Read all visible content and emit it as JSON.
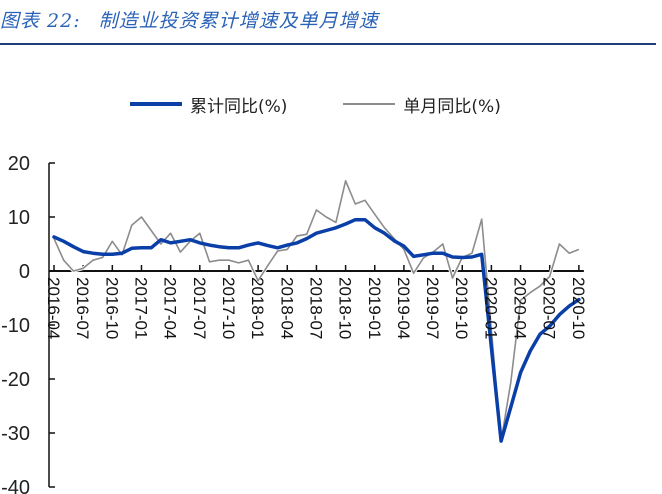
{
  "header": {
    "figure_number": "图表 22:",
    "title": "制造业投资累计增速及单月增速",
    "rule_color": "#1f3f7a"
  },
  "legend": {
    "items": [
      {
        "label": "累计同比(%)",
        "color": "#0a3fa8",
        "style": "thick"
      },
      {
        "label": "单月同比(%)",
        "color": "#8c8c8c",
        "style": "thin"
      }
    ]
  },
  "chart_data": {
    "type": "line",
    "title": "制造业投资累计增速及单月增速",
    "xlabel": "",
    "ylabel": "",
    "ylim": [
      -40,
      20
    ],
    "yticks": [
      20,
      10,
      0,
      -10,
      -20,
      -30,
      -40
    ],
    "grid": false,
    "legend_position": "top",
    "x_tick_labels": [
      "2016-04",
      "2016-07",
      "2016-10",
      "2017-01",
      "2017-04",
      "2017-07",
      "2017-10",
      "2018-01",
      "2018-04",
      "2018-07",
      "2018-10",
      "2019-01",
      "2019-04",
      "2019-07",
      "2019-10",
      "2020-01",
      "2020-04",
      "2020-07",
      "2020-10"
    ],
    "x": [
      "2016-04",
      "2016-05",
      "2016-06",
      "2016-07",
      "2016-08",
      "2016-09",
      "2016-10",
      "2016-11",
      "2016-12",
      "2017-01",
      "2017-02",
      "2017-03",
      "2017-04",
      "2017-05",
      "2017-06",
      "2017-07",
      "2017-08",
      "2017-09",
      "2017-10",
      "2017-11",
      "2017-12",
      "2018-01",
      "2018-02",
      "2018-03",
      "2018-04",
      "2018-05",
      "2018-06",
      "2018-07",
      "2018-08",
      "2018-09",
      "2018-10",
      "2018-11",
      "2018-12",
      "2019-01",
      "2019-02",
      "2019-03",
      "2019-04",
      "2019-05",
      "2019-06",
      "2019-07",
      "2019-08",
      "2019-09",
      "2019-10",
      "2019-11",
      "2019-12",
      "2020-01",
      "2020-02",
      "2020-03",
      "2020-04",
      "2020-05",
      "2020-06",
      "2020-07",
      "2020-08",
      "2020-09",
      "2020-10"
    ],
    "series": [
      {
        "name": "累计同比(%)",
        "color": "#0a3fa8",
        "values": [
          6.3,
          5.5,
          4.5,
          3.6,
          3.3,
          3.1,
          3.1,
          3.3,
          4.2,
          4.3,
          4.3,
          5.8,
          5.2,
          5.5,
          5.8,
          5.2,
          4.8,
          4.5,
          4.3,
          4.3,
          4.8,
          5.2,
          4.7,
          4.3,
          4.8,
          5.2,
          6.0,
          7.0,
          7.5,
          8.0,
          8.7,
          9.5,
          9.5,
          8.0,
          7.0,
          5.6,
          4.6,
          2.7,
          3.0,
          3.3,
          3.3,
          2.6,
          2.5,
          2.6,
          3.1,
          null,
          -31.5,
          -25.2,
          -18.8,
          -14.8,
          -11.7,
          -10.2,
          -8.1,
          -6.5,
          -5.3
        ]
      },
      {
        "name": "单月同比(%)",
        "color": "#8c8c8c",
        "values": [
          6.0,
          2.0,
          0.0,
          0.5,
          2.0,
          2.5,
          5.5,
          3.0,
          8.5,
          10.0,
          7.5,
          5.0,
          7.0,
          3.5,
          5.5,
          7.0,
          1.7,
          2.0,
          2.0,
          1.5,
          2.0,
          -1.8,
          1.0,
          3.7,
          4.0,
          6.5,
          6.8,
          11.3,
          10.0,
          9.0,
          16.7,
          12.4,
          13.1,
          10.5,
          8.0,
          6.0,
          4.0,
          -0.4,
          2.4,
          3.5,
          5.0,
          -1.3,
          2.5,
          3.3,
          9.6,
          null,
          -31.5,
          -20.6,
          -5.4,
          -4.0,
          -2.8,
          -1.0,
          5.0,
          3.3,
          4.0
        ]
      }
    ]
  }
}
